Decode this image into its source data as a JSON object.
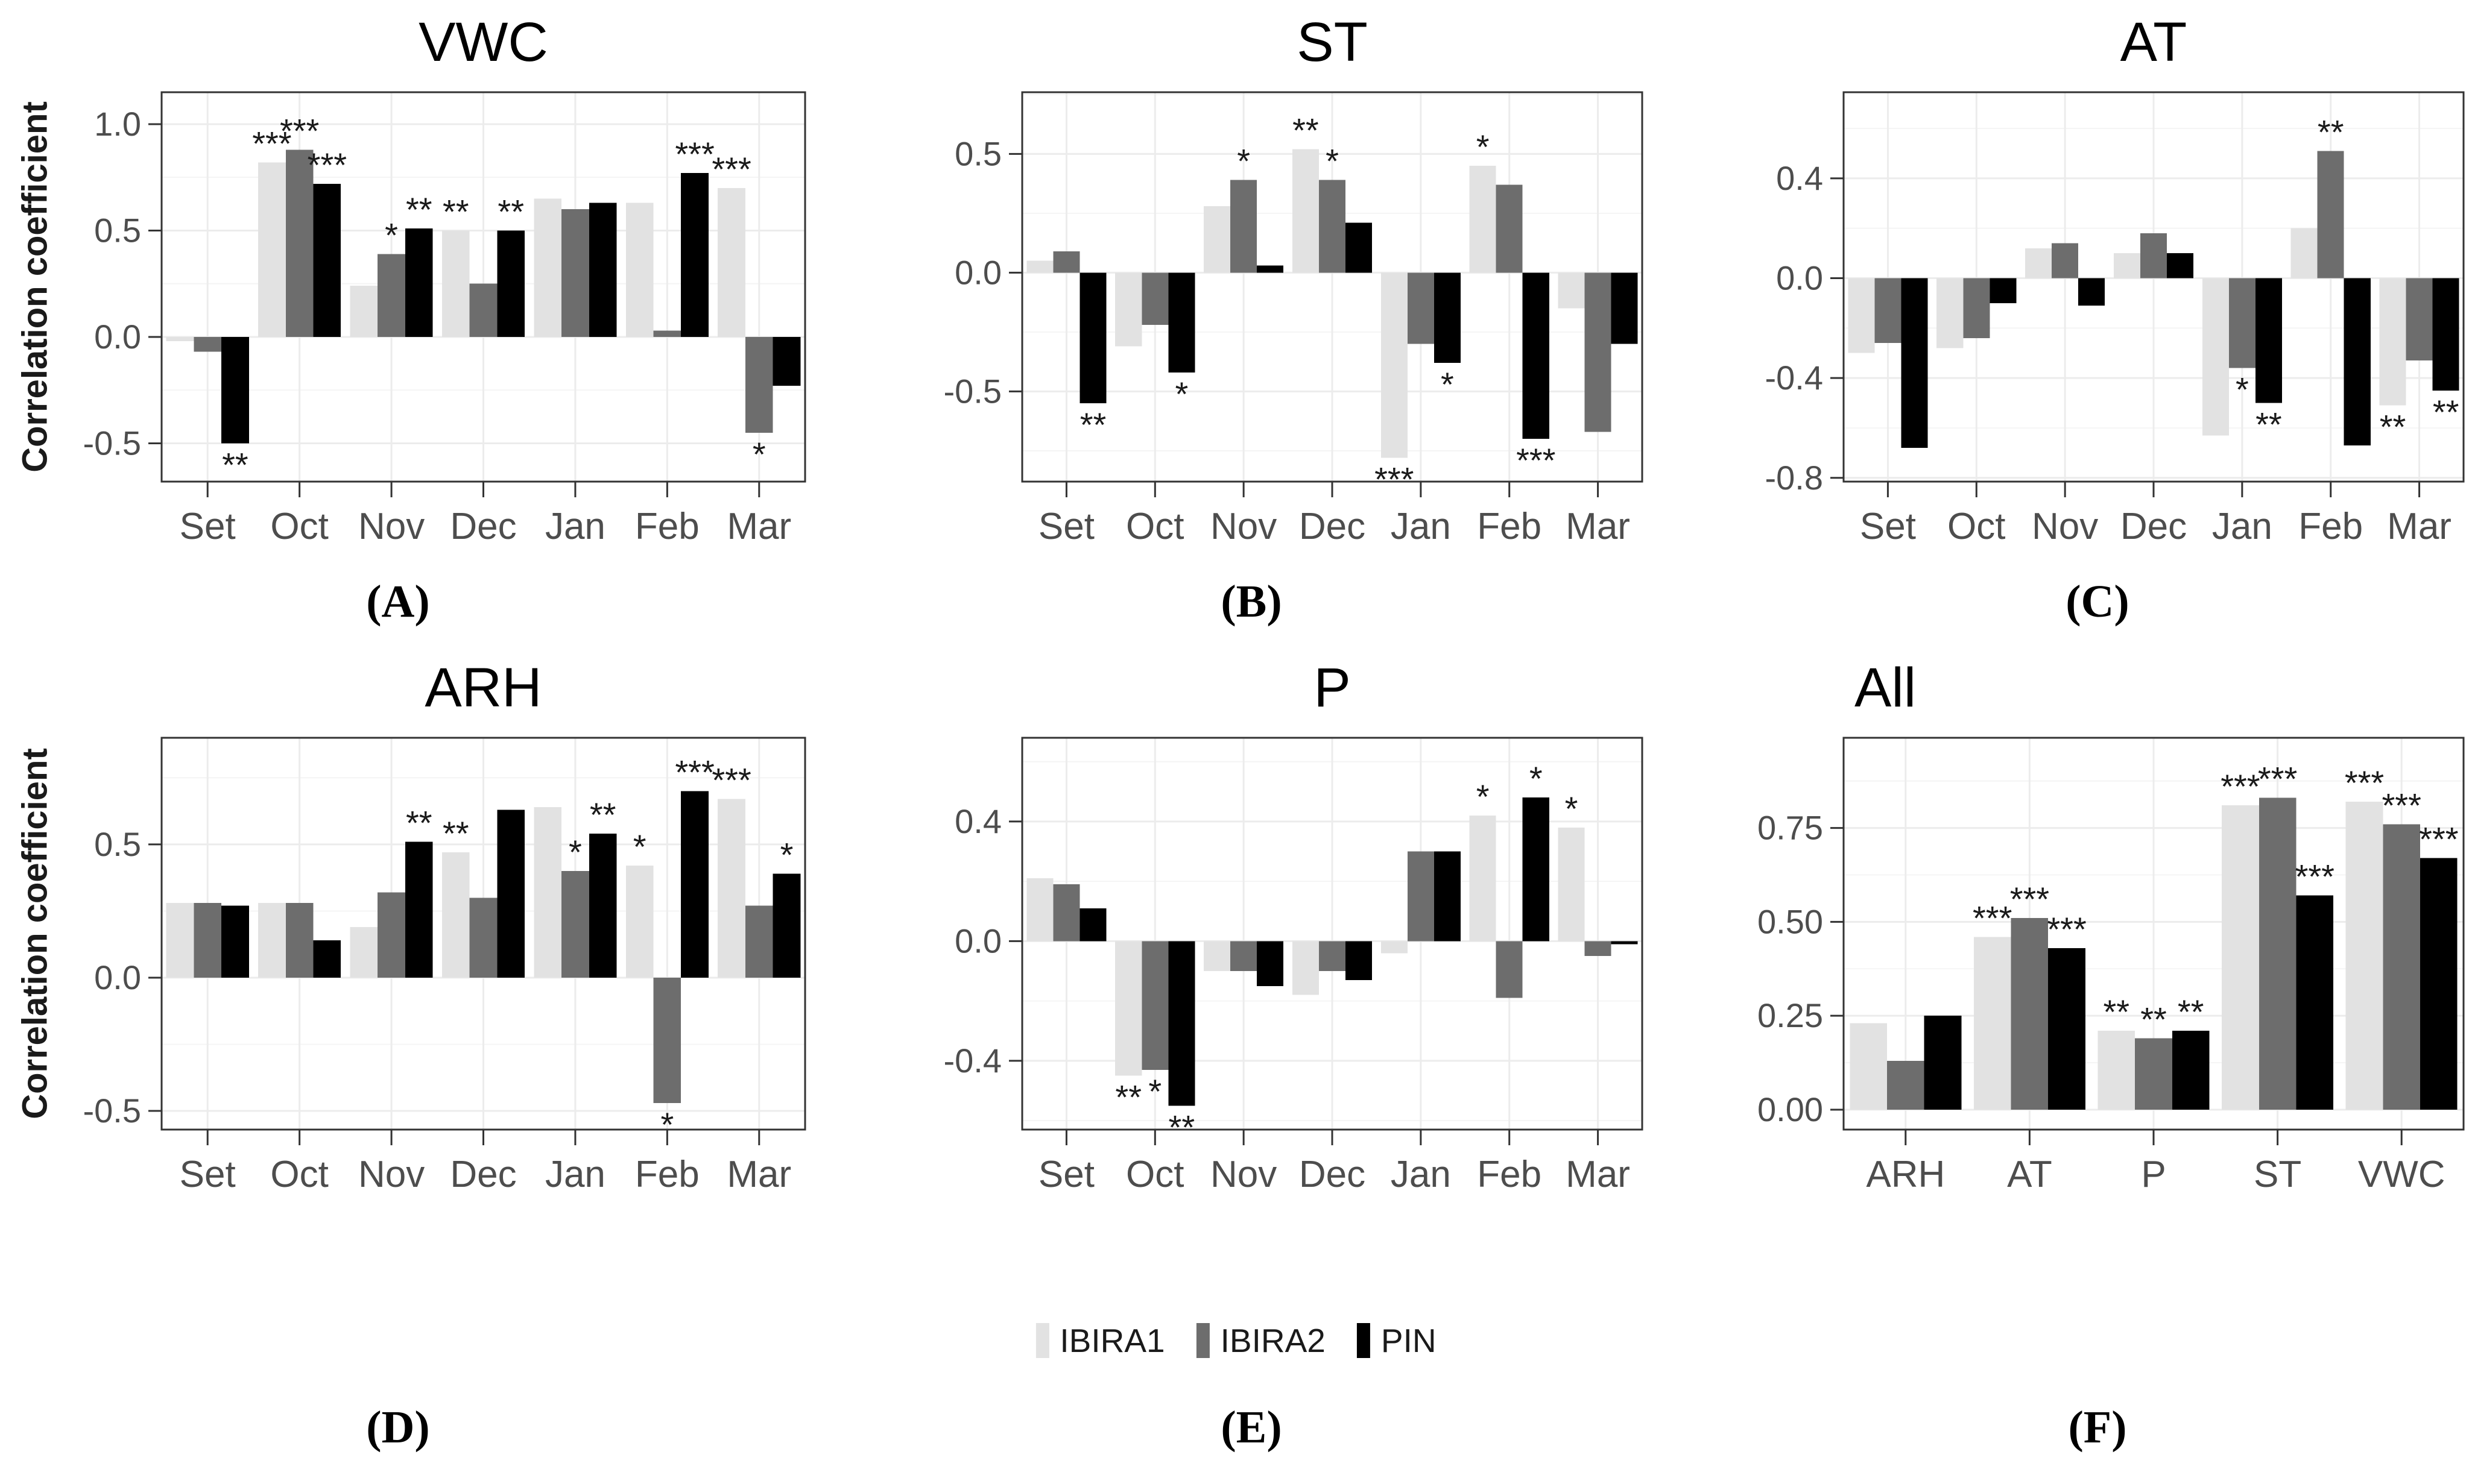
{
  "figure": {
    "ylabel": "Correlation coefficient",
    "background": "#ffffff",
    "frame_color": "#333333",
    "grid_major_color": "#ececec",
    "grid_minor_color": "#f4f4f4",
    "tick_label_color": "#4d4d4d",
    "sig_color": "#1a1a1a"
  },
  "legend": {
    "items": [
      {
        "label": "IBIRA1",
        "color": "#e2e2e2"
      },
      {
        "label": "IBIRA2",
        "color": "#6d6d6d"
      },
      {
        "label": "PIN",
        "color": "#000000"
      }
    ]
  },
  "chart_data": [
    {
      "type": "bar",
      "panel_label": "(A)",
      "title": "VWC",
      "title_align": "center",
      "ylabel": "Correlation coefficient",
      "categories": [
        "Set",
        "Oct",
        "Nov",
        "Dec",
        "Jan",
        "Feb",
        "Mar"
      ],
      "ylim": [
        -0.68,
        1.15
      ],
      "yticks": [
        1.0,
        0.5,
        0.0,
        -0.5
      ],
      "ytick_labels": [
        "1.0",
        "0.5",
        "0.0",
        "-0.5"
      ],
      "series": [
        {
          "name": "IBIRA1",
          "values": [
            -0.02,
            0.82,
            0.24,
            0.5,
            0.65,
            0.63,
            0.7
          ],
          "sig": [
            "",
            "***",
            "",
            "**",
            "",
            "",
            "***"
          ]
        },
        {
          "name": "IBIRA2",
          "values": [
            -0.07,
            0.88,
            0.39,
            0.25,
            0.6,
            0.03,
            -0.45
          ],
          "sig": [
            "",
            "***",
            "*",
            "",
            "",
            "",
            "*"
          ]
        },
        {
          "name": "PIN",
          "values": [
            -0.5,
            0.72,
            0.51,
            0.5,
            0.63,
            0.77,
            -0.23
          ],
          "sig": [
            "**",
            "***",
            "**",
            "**",
            "",
            "***",
            ""
          ]
        }
      ]
    },
    {
      "type": "bar",
      "panel_label": "(B)",
      "title": "ST",
      "title_align": "center",
      "ylabel": "",
      "categories": [
        "Set",
        "Oct",
        "Nov",
        "Dec",
        "Jan",
        "Feb",
        "Mar"
      ],
      "ylim": [
        -0.88,
        0.76
      ],
      "yticks": [
        0.5,
        0.0,
        -0.5
      ],
      "ytick_labels": [
        "0.5",
        "0.0",
        "-0.5"
      ],
      "series": [
        {
          "name": "IBIRA1",
          "values": [
            0.05,
            -0.31,
            0.28,
            0.52,
            -0.78,
            0.45,
            -0.15
          ],
          "sig": [
            "",
            "",
            "",
            "**",
            "***",
            "*",
            ""
          ]
        },
        {
          "name": "IBIRA2",
          "values": [
            0.09,
            -0.22,
            0.39,
            0.39,
            -0.3,
            0.37,
            -0.67
          ],
          "sig": [
            "",
            "",
            "*",
            "*",
            "",
            "",
            ""
          ]
        },
        {
          "name": "PIN",
          "values": [
            -0.55,
            -0.42,
            0.03,
            0.21,
            -0.38,
            -0.7,
            -0.3
          ],
          "sig": [
            "**",
            "*",
            "",
            "",
            "*",
            "***",
            ""
          ]
        }
      ]
    },
    {
      "type": "bar",
      "panel_label": "(C)",
      "title": "AT",
      "title_align": "center",
      "ylabel": "",
      "categories": [
        "Set",
        "Oct",
        "Nov",
        "Dec",
        "Jan",
        "Feb",
        "Mar"
      ],
      "ylim": [
        -0.815,
        0.745
      ],
      "yticks": [
        0.4,
        0.0,
        -0.4,
        -0.8
      ],
      "ytick_labels": [
        "0.4",
        "0.0",
        "-0.4",
        "-0.8"
      ],
      "series": [
        {
          "name": "IBIRA1",
          "values": [
            -0.3,
            -0.28,
            0.12,
            0.1,
            -0.63,
            0.2,
            -0.51
          ],
          "sig": [
            "",
            "",
            "",
            "",
            "",
            "",
            "**"
          ]
        },
        {
          "name": "IBIRA2",
          "values": [
            -0.26,
            -0.24,
            0.14,
            0.18,
            -0.36,
            0.51,
            -0.33
          ],
          "sig": [
            "",
            "",
            "",
            "",
            "*",
            "**",
            ""
          ]
        },
        {
          "name": "PIN",
          "values": [
            -0.68,
            -0.1,
            -0.11,
            0.1,
            -0.5,
            -0.67,
            -0.45
          ],
          "sig": [
            "",
            "",
            "",
            "",
            "**",
            "",
            "**"
          ]
        }
      ]
    },
    {
      "type": "bar",
      "panel_label": "(D)",
      "title": "ARH",
      "title_align": "center",
      "ylabel": "Correlation coefficient",
      "categories": [
        "Set",
        "Oct",
        "Nov",
        "Dec",
        "Jan",
        "Feb",
        "Mar"
      ],
      "ylim": [
        -0.57,
        0.9
      ],
      "yticks": [
        0.5,
        0.0,
        -0.5
      ],
      "ytick_labels": [
        "0.5",
        "0.0",
        "-0.5"
      ],
      "series": [
        {
          "name": "IBIRA1",
          "values": [
            0.28,
            0.28,
            0.19,
            0.47,
            0.64,
            0.42,
            0.67
          ],
          "sig": [
            "",
            "",
            "",
            "**",
            "",
            "*",
            "***"
          ]
        },
        {
          "name": "IBIRA2",
          "values": [
            0.28,
            0.28,
            0.32,
            0.3,
            0.4,
            -0.47,
            0.27
          ],
          "sig": [
            "",
            "",
            "",
            "",
            "*",
            "*",
            ""
          ]
        },
        {
          "name": "PIN",
          "values": [
            0.27,
            0.14,
            0.51,
            0.63,
            0.54,
            0.7,
            0.39
          ],
          "sig": [
            "",
            "",
            "**",
            "",
            "**",
            "***",
            "*"
          ]
        }
      ]
    },
    {
      "type": "bar",
      "panel_label": "(E)",
      "title": "P",
      "title_align": "center",
      "ylabel": "",
      "categories": [
        "Set",
        "Oct",
        "Nov",
        "Dec",
        "Jan",
        "Feb",
        "Mar"
      ],
      "ylim": [
        -0.63,
        0.68
      ],
      "yticks": [
        0.4,
        0.0,
        -0.4
      ],
      "ytick_labels": [
        "0.4",
        "0.0",
        "-0.4"
      ],
      "series": [
        {
          "name": "IBIRA1",
          "values": [
            0.21,
            -0.45,
            -0.1,
            -0.18,
            -0.04,
            0.42,
            0.38
          ],
          "sig": [
            "",
            "**",
            "",
            "",
            "",
            "*",
            "*"
          ]
        },
        {
          "name": "IBIRA2",
          "values": [
            0.19,
            -0.43,
            -0.1,
            -0.1,
            0.3,
            -0.19,
            -0.05
          ],
          "sig": [
            "",
            "*",
            "",
            "",
            "",
            "",
            ""
          ]
        },
        {
          "name": "PIN",
          "values": [
            0.11,
            -0.55,
            -0.15,
            -0.13,
            0.3,
            0.48,
            -0.01
          ],
          "sig": [
            "",
            "**",
            "",
            "",
            "",
            "*",
            ""
          ]
        }
      ]
    },
    {
      "type": "bar",
      "panel_label": "(F)",
      "title": "All",
      "title_align": "left",
      "ylabel": "",
      "categories": [
        "ARH",
        "AT",
        "P",
        "ST",
        "VWC"
      ],
      "ylim": [
        -0.053,
        0.99
      ],
      "yticks": [
        0.75,
        0.5,
        0.25,
        0.0
      ],
      "ytick_labels": [
        "0.75",
        "0.50",
        "0.25",
        "0.00"
      ],
      "series": [
        {
          "name": "IBIRA1",
          "values": [
            0.23,
            0.46,
            0.21,
            0.81,
            0.82
          ],
          "sig": [
            "",
            "***",
            "**",
            "***",
            "***"
          ]
        },
        {
          "name": "IBIRA2",
          "values": [
            0.13,
            0.51,
            0.19,
            0.83,
            0.76
          ],
          "sig": [
            "",
            "***",
            "**",
            "***",
            "***"
          ]
        },
        {
          "name": "PIN",
          "values": [
            0.25,
            0.43,
            0.21,
            0.57,
            0.67
          ],
          "sig": [
            "",
            "***",
            "**",
            "***",
            "***"
          ]
        }
      ]
    }
  ]
}
